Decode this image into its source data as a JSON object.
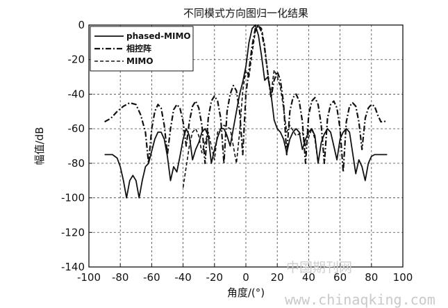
{
  "chart_data": {
    "type": "line",
    "title": "不同模式方向图归一化结果",
    "xlabel": "角度/(°)",
    "ylabel": "幅值/dB",
    "xlim": [
      -100,
      100
    ],
    "ylim": [
      -140,
      0
    ],
    "xticks": [
      -100,
      -80,
      -60,
      -40,
      -20,
      0,
      20,
      40,
      60,
      80,
      100
    ],
    "yticks": [
      0,
      -20,
      -40,
      -60,
      -80,
      -100,
      -120,
      -140
    ],
    "grid": true,
    "legend_position": "top-left",
    "series": [
      {
        "name": "phased-MIMO",
        "style": "solid",
        "x": [
          -90,
          -85,
          -82,
          -80,
          -78,
          -76,
          -74,
          -72,
          -70,
          -68,
          -66,
          -64,
          -62,
          -60,
          -58,
          -56,
          -54,
          -52,
          -50,
          -48,
          -46,
          -44,
          -42,
          -40,
          -38,
          -36,
          -34,
          -32,
          -30,
          -28,
          -26,
          -24,
          -22,
          -20,
          -18,
          -16,
          -14,
          -12,
          -10,
          -8,
          -6,
          -4,
          -2,
          0,
          2,
          4,
          6,
          8,
          10,
          12,
          14,
          16,
          18,
          20,
          22,
          24,
          26,
          28,
          30,
          32,
          34,
          36,
          38,
          40,
          42,
          44,
          46,
          48,
          50,
          52,
          54,
          56,
          58,
          60,
          62,
          64,
          66,
          68,
          70,
          72,
          74,
          76,
          78,
          80,
          82,
          84,
          86,
          88,
          90
        ],
        "values": [
          -75,
          -75,
          -77,
          -82,
          -90,
          -100,
          -90,
          -87,
          -90,
          -100,
          -90,
          -82,
          -80,
          -73,
          -66,
          -62,
          -62,
          -66,
          -76,
          -90,
          -82,
          -85,
          -76,
          -66,
          -60,
          -64,
          -78,
          -72,
          -68,
          -62,
          -60,
          -64,
          -80,
          -72,
          -65,
          -60,
          -60,
          -64,
          -70,
          -60,
          -50,
          -40,
          -33,
          -24,
          -10,
          -2,
          0,
          -6,
          -18,
          -32,
          -30,
          -40,
          -55,
          -60,
          -62,
          -66,
          -74,
          -66,
          -62,
          -60,
          -62,
          -72,
          -66,
          -62,
          -60,
          -64,
          -80,
          -68,
          -63,
          -60,
          -62,
          -70,
          -78,
          -66,
          -62,
          -60,
          -62,
          -74,
          -86,
          -78,
          -82,
          -90,
          -80,
          -76,
          -75,
          -75,
          -75,
          -75,
          -75
        ]
      },
      {
        "name": "相控阵",
        "style": "dashdot",
        "x": [
          -90,
          -86,
          -82,
          -78,
          -74,
          -70,
          -67,
          -64,
          -62,
          -60,
          -58,
          -56,
          -54,
          -52,
          -50,
          -48,
          -46,
          -44,
          -42,
          -40,
          -38,
          -36,
          -34,
          -32,
          -30,
          -28,
          -26,
          -24,
          -22,
          -20,
          -18,
          -16,
          -14,
          -12,
          -10,
          -8,
          -6,
          -4,
          -2,
          0,
          2,
          4,
          6,
          8,
          10,
          12,
          14,
          16,
          18,
          20,
          22,
          24,
          26,
          28,
          30,
          32,
          34,
          36,
          38,
          40,
          42,
          44,
          46,
          48,
          50,
          52,
          54,
          56,
          58,
          60,
          62,
          64,
          66,
          68,
          70,
          72,
          74,
          76,
          78,
          80,
          82,
          84,
          86,
          88,
          90
        ],
        "values": [
          -56,
          -54,
          -50,
          -47,
          -45,
          -46,
          -52,
          -62,
          -80,
          -60,
          -50,
          -46,
          -48,
          -58,
          -75,
          -60,
          -49,
          -46,
          -48,
          -56,
          -70,
          -56,
          -47,
          -44,
          -48,
          -58,
          -80,
          -54,
          -44,
          -41,
          -44,
          -54,
          -80,
          -50,
          -40,
          -35,
          -38,
          -50,
          -75,
          -40,
          -26,
          -12,
          -2,
          0,
          -4,
          -14,
          -28,
          -42,
          -32,
          -27,
          -32,
          -45,
          -75,
          -50,
          -42,
          -40,
          -44,
          -56,
          -80,
          -52,
          -44,
          -42,
          -46,
          -58,
          -80,
          -54,
          -46,
          -44,
          -48,
          -60,
          -85,
          -56,
          -47,
          -45,
          -47,
          -56,
          -72,
          -54,
          -48,
          -46,
          -47,
          -52,
          -56,
          -56,
          -55
        ]
      },
      {
        "name": "MIMO",
        "style": "dashed",
        "x": [
          -40,
          -36,
          -34,
          -32,
          -30,
          -28,
          -24,
          -20,
          -18,
          -14,
          -10,
          -8,
          -6,
          -4,
          -2,
          0,
          2,
          4,
          6,
          8,
          10,
          12,
          14,
          16,
          18,
          20,
          22,
          24,
          26,
          28,
          32,
          36,
          38,
          42,
          44,
          46
        ],
        "values": [
          -94,
          -70,
          -62,
          -60,
          -64,
          -74,
          -62,
          -78,
          -62,
          -58,
          -60,
          -70,
          -80,
          -62,
          -38,
          -26,
          -30,
          -16,
          -4,
          0,
          -2,
          -12,
          -28,
          -40,
          -26,
          -30,
          -36,
          -48,
          -62,
          -58,
          -64,
          -62,
          -70,
          -60,
          -66,
          -80
        ]
      }
    ]
  },
  "watermark": {
    "cn": "中国期刊网",
    "url": "www.chinaqking.com"
  }
}
